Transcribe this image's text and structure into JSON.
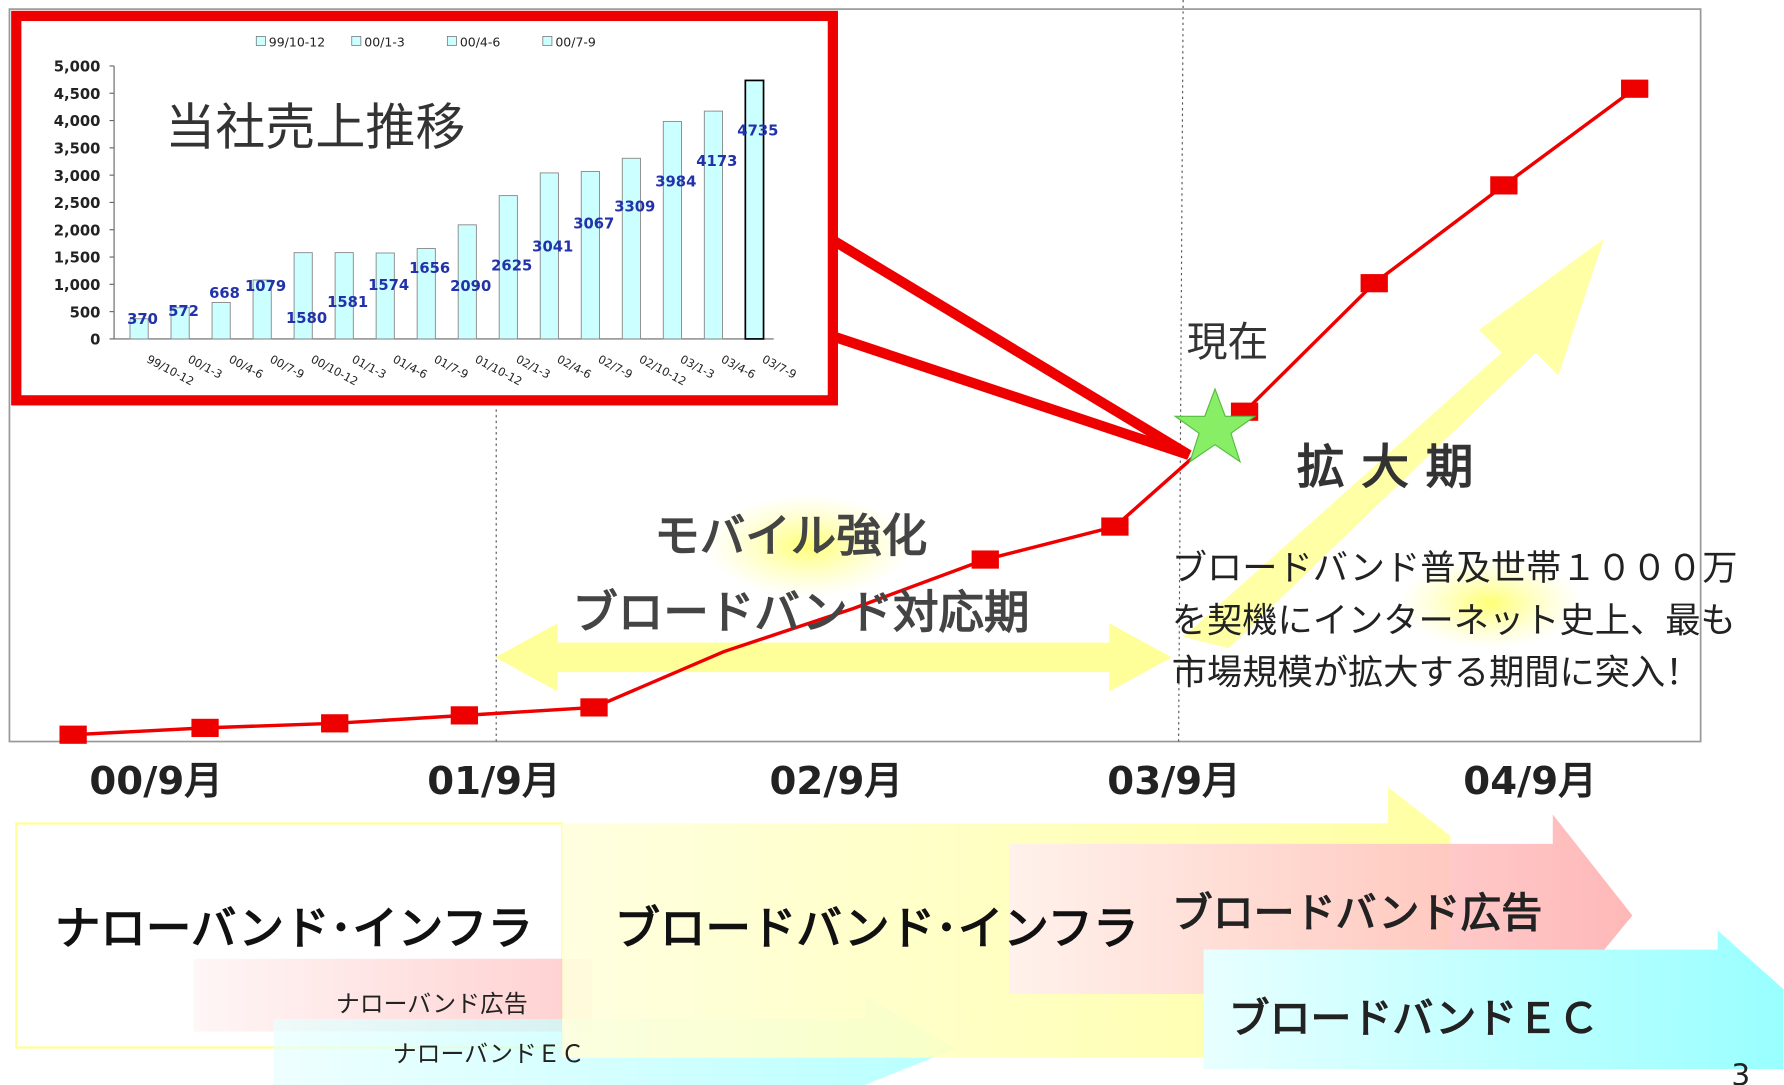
{
  "chart_data": {
    "type": "bar",
    "title": "当社売上推移",
    "categories": [
      "99/10-12",
      "00/1-3",
      "00/4-6",
      "00/7-9",
      "00/10-12",
      "01/1-3",
      "01/4-6",
      "01/7-9",
      "01/10-12",
      "02/1-3",
      "02/4-6",
      "02/7-9",
      "02/10-12",
      "03/1-3",
      "03/4-6",
      "03/7-9"
    ],
    "values": [
      370,
      572,
      668,
      1079,
      1580,
      1581,
      1574,
      1656,
      2090,
      2625,
      3041,
      3067,
      3309,
      3984,
      4173,
      4735
    ],
    "color": "#ccffff",
    "ylim": [
      0,
      5000
    ],
    "yticks": [
      0,
      500,
      {
        "value": 1000,
        "label": "1,000"
      },
      {
        "value": 1500,
        "label": "1,500"
      },
      {
        "value": 2000,
        "label": "2,000"
      },
      {
        "value": 2500,
        "label": "2,500"
      },
      {
        "value": 3000,
        "label": "3,000"
      },
      {
        "value": 3500,
        "label": "3,500"
      },
      {
        "value": 4000,
        "label": "4,000"
      },
      {
        "value": 4500,
        "label": "4,500"
      },
      {
        "value": 5000,
        "label": "5,000"
      }
    ]
  },
  "slide": {
    "now_label": "現在",
    "phase_label": "拡 大 期",
    "mobile": "モバイル強化",
    "broadband_period": "ブロードバンド対応期",
    "description": [
      "ブロードバンド普及世帯１０００万",
      "を契機にインターネット史上、最も",
      "市場規模が拡大する期間に突入！"
    ],
    "timeline": [
      "00/9月",
      "01/9月",
      "02/9月",
      "03/9月",
      "04/9月"
    ],
    "narrowband_infra": "ナローバンド･インフラ",
    "broadband_infra": "ブロードバンド･インフラ",
    "broadband_ad": "ブロードバンド広告",
    "narrowband_ad": "ナローバンド広告",
    "narrowband_ec": "ナローバンドＥＣ",
    "broadband_ec": "ブロードバンドＥＣ",
    "page_number": "3"
  }
}
